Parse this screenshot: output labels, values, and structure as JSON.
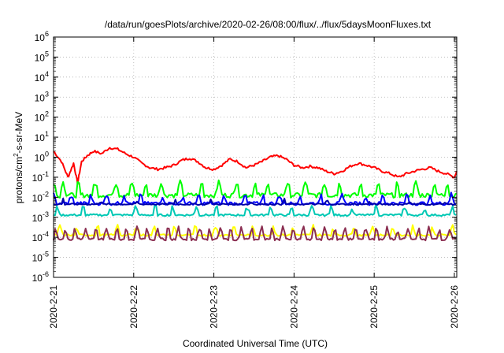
{
  "chart_data": {
    "type": "line",
    "title": "/data/run/goesPlots/archive/2020-02-26/08:00/flux/../flux/5daysMoonFluxes.txt",
    "xlabel": "Coordinated Universal Time (UTC)",
    "ylabel": {
      "base": "protons/cm",
      "sup": "2",
      "rest": "-s-sr-MeV"
    },
    "yscale": "log",
    "ylim_exponent": [
      -6,
      6
    ],
    "yticks": [
      {
        "base": "10",
        "exp": "6"
      },
      {
        "base": "10",
        "exp": "5"
      },
      {
        "base": "10",
        "exp": "4"
      },
      {
        "base": "10",
        "exp": "3"
      },
      {
        "base": "10",
        "exp": "2"
      },
      {
        "base": "10",
        "exp": "1"
      },
      {
        "base": "10",
        "exp": "0"
      },
      {
        "base": "10",
        "exp": "-1"
      },
      {
        "base": "10",
        "exp": "-2"
      },
      {
        "base": "10",
        "exp": "-3"
      },
      {
        "base": "10",
        "exp": "-4"
      },
      {
        "base": "10",
        "exp": "-5"
      },
      {
        "base": "10",
        "exp": "-6"
      }
    ],
    "xlim_days": [
      0,
      5.03
    ],
    "xticks": [
      "2020-2-21",
      "2020-2-22",
      "2020-2-23",
      "2020-2-24",
      "2020-2-25",
      "2020-2-26"
    ],
    "grid": true,
    "series": [
      {
        "color": "#ff0000",
        "x": [
          0.0,
          0.1,
          0.18,
          0.25,
          0.3,
          0.35,
          0.42,
          0.5,
          0.6,
          0.7,
          0.8,
          0.9,
          1.0,
          1.1,
          1.2,
          1.3,
          1.4,
          1.5,
          1.6,
          1.7,
          1.8,
          1.9,
          2.0,
          2.1,
          2.2,
          2.3,
          2.4,
          2.5,
          2.6,
          2.7,
          2.8,
          2.9,
          3.0,
          3.1,
          3.2,
          3.3,
          3.4,
          3.5,
          3.6,
          3.7,
          3.8,
          3.9,
          4.0,
          4.1,
          4.2,
          4.3,
          4.4,
          4.5,
          4.6,
          4.7,
          4.8,
          4.9,
          5.0,
          5.03
        ],
        "y": [
          2.0,
          0.6,
          0.1,
          0.5,
          0.05,
          0.6,
          1.2,
          2.0,
          1.5,
          3.0,
          2.5,
          1.5,
          1.0,
          0.5,
          0.3,
          0.25,
          0.3,
          0.4,
          0.7,
          0.9,
          0.6,
          0.3,
          0.25,
          0.4,
          0.8,
          0.6,
          0.3,
          0.4,
          0.6,
          1.0,
          1.2,
          0.8,
          0.4,
          0.3,
          0.35,
          0.3,
          0.2,
          0.15,
          0.2,
          0.35,
          0.5,
          0.4,
          0.3,
          0.2,
          0.15,
          0.1,
          0.15,
          0.2,
          0.25,
          0.3,
          0.2,
          0.15,
          0.1,
          0.2
        ]
      },
      {
        "color": "#00ff00",
        "base": 0.013,
        "spikes": [
          0.0,
          0.12,
          0.31,
          0.52,
          0.78,
          0.98,
          1.15,
          1.34,
          1.58,
          1.85,
          2.06,
          2.28,
          2.51,
          2.67,
          2.92,
          3.14,
          3.38,
          3.57,
          3.83,
          4.05,
          4.29,
          4.52,
          4.75,
          4.91
        ],
        "spike_value": 0.06,
        "noise": 0.007
      },
      {
        "color": "#00c8b4",
        "base": 0.0013,
        "spikes": [
          0.05,
          0.37,
          0.71,
          1.02,
          1.27,
          1.49,
          1.78,
          2.03,
          2.42,
          2.71,
          2.97,
          3.22,
          3.46,
          3.72,
          4.02,
          4.38,
          4.63,
          4.97
        ],
        "spike_value": 0.004,
        "noise": 0.0003
      },
      {
        "color": "#0000ff",
        "base": 0.005,
        "spikes": [
          0.0,
          0.22,
          0.47,
          0.66,
          0.88,
          1.09,
          1.36,
          1.61,
          1.81,
          2.13,
          2.39,
          2.61,
          2.82,
          3.07,
          3.33,
          3.6,
          3.89,
          4.11,
          4.41,
          4.7,
          4.96
        ],
        "spike_value": 0.015,
        "noise": 0.002
      },
      {
        "color": "#0000aa",
        "base": 0.0045,
        "spikes": [
          0.12,
          0.58,
          1.05,
          1.52,
          1.96,
          2.47,
          2.88,
          3.41,
          3.93,
          4.44,
          4.89
        ],
        "spike_value": 0.008,
        "noise": 0.0008
      },
      {
        "color": "#ffff00",
        "base": 0.00013,
        "spikes": [
          0.08,
          0.29,
          0.55,
          0.8,
          1.04,
          1.26,
          1.51,
          1.77,
          2.02,
          2.25,
          2.49,
          2.74,
          2.99,
          3.24,
          3.49,
          3.74,
          3.98,
          4.23,
          4.48,
          4.73,
          4.98
        ],
        "spike_value": 0.0004,
        "noise": 3e-05
      },
      {
        "color": "#8b2f52",
        "base": 8e-05,
        "spikes": [
          0.03,
          0.15,
          0.27,
          0.4,
          0.53,
          0.66,
          0.79,
          0.91,
          1.04,
          1.17,
          1.3,
          1.43,
          1.56,
          1.69,
          1.82,
          1.95,
          2.08,
          2.21,
          2.34,
          2.47,
          2.6,
          2.73,
          2.86,
          2.99,
          3.12,
          3.25,
          3.38,
          3.51,
          3.64,
          3.77,
          3.9,
          4.03,
          4.16,
          4.29,
          4.42,
          4.55,
          4.68,
          4.81,
          4.94
        ],
        "spike_value": 0.0003,
        "noise": 2e-05
      }
    ]
  }
}
